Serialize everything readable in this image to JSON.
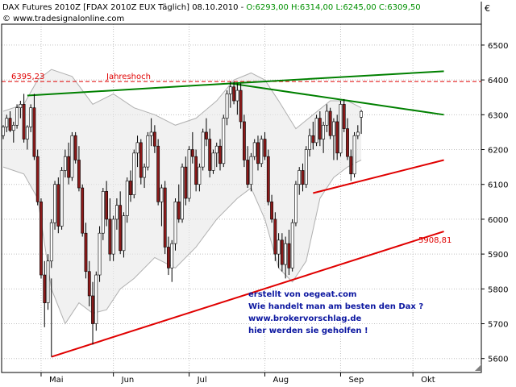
{
  "header": {
    "title": "DAX Futures 2010Z [FDAX 2010Z EUX  Täglich] 08.10.2010 -",
    "ohlc": "O:6293,00 H:6314,00 L:6245,00 C:6309,50",
    "copyright": "© www.tradesignalonline.com",
    "currency": "€"
  },
  "info_text": {
    "line1": "erstellt von oegeat.com",
    "line2": "Wie handelt man am besten den Dax ?",
    "line3": "www.brokervorschlag.de",
    "line4": "hier werden sie geholfen !"
  },
  "colors": {
    "up_candle": "#ffffff",
    "down_candle": "#8b1a1a",
    "trendline_green": "#008000",
    "trendline_red": "#e00000",
    "band": "#b0b0b0",
    "info_text": "#0c17a0",
    "grid": "#c0c0c0"
  },
  "chart_data": {
    "type": "candlestick",
    "timeframe": "daily",
    "y_axis": {
      "side": "right",
      "range": [
        5560,
        6560
      ],
      "ticks": [
        5600,
        5700,
        5800,
        5900,
        6000,
        6100,
        6200,
        6300,
        6400,
        6500
      ],
      "tick_labels": [
        "5600",
        "5700",
        "5800",
        "5900",
        "6000",
        "6100",
        "6200",
        "6300",
        "6400",
        "6500"
      ]
    },
    "x_axis": {
      "months": [
        "Mai",
        "Jun",
        "Jul",
        "Aug",
        "Sep",
        "Okt"
      ],
      "month_start_bar": [
        11,
        32,
        54,
        76,
        98,
        119
      ]
    },
    "grid": "dotted",
    "candles": [
      {
        "o": 6240,
        "h": 6270,
        "l": 6230,
        "c": 6265
      },
      {
        "o": 6265,
        "h": 6300,
        "l": 6250,
        "c": 6290
      },
      {
        "o": 6290,
        "h": 6310,
        "l": 6250,
        "c": 6255
      },
      {
        "o": 6255,
        "h": 6280,
        "l": 6220,
        "c": 6270
      },
      {
        "o": 6270,
        "h": 6330,
        "l": 6260,
        "c": 6320
      },
      {
        "o": 6320,
        "h": 6340,
        "l": 6290,
        "c": 6330
      },
      {
        "o": 6330,
        "h": 6360,
        "l": 6220,
        "c": 6230
      },
      {
        "o": 6230,
        "h": 6270,
        "l": 6200,
        "c": 6265
      },
      {
        "o": 6265,
        "h": 6330,
        "l": 6250,
        "c": 6320
      },
      {
        "o": 6320,
        "h": 6360,
        "l": 6170,
        "c": 6180
      },
      {
        "o": 6180,
        "h": 6200,
        "l": 6040,
        "c": 6050
      },
      {
        "o": 6050,
        "h": 6060,
        "l": 5830,
        "c": 5840
      },
      {
        "o": 5840,
        "h": 5880,
        "l": 5690,
        "c": 5760
      },
      {
        "o": 5760,
        "h": 5900,
        "l": 5740,
        "c": 5880
      },
      {
        "o": 5880,
        "h": 6000,
        "l": 5860,
        "c": 5990
      },
      {
        "o": 5990,
        "h": 6110,
        "l": 5970,
        "c": 6100
      },
      {
        "o": 6100,
        "h": 6120,
        "l": 5960,
        "c": 5980
      },
      {
        "o": 5980,
        "h": 6150,
        "l": 5970,
        "c": 6140
      },
      {
        "o": 6140,
        "h": 6200,
        "l": 6120,
        "c": 6180
      },
      {
        "o": 6180,
        "h": 6220,
        "l": 6100,
        "c": 6120
      },
      {
        "o": 6120,
        "h": 6250,
        "l": 6110,
        "c": 6240
      },
      {
        "o": 6240,
        "h": 6250,
        "l": 6160,
        "c": 6170
      },
      {
        "o": 6170,
        "h": 6210,
        "l": 6080,
        "c": 6090
      },
      {
        "o": 6090,
        "h": 6100,
        "l": 5950,
        "c": 5960
      },
      {
        "o": 5960,
        "h": 5990,
        "l": 5830,
        "c": 5850
      },
      {
        "o": 5850,
        "h": 5880,
        "l": 5750,
        "c": 5780
      },
      {
        "o": 5780,
        "h": 5820,
        "l": 5640,
        "c": 5700
      },
      {
        "o": 5700,
        "h": 5850,
        "l": 5680,
        "c": 5840
      },
      {
        "o": 5840,
        "h": 5980,
        "l": 5820,
        "c": 5960
      },
      {
        "o": 5960,
        "h": 6090,
        "l": 5940,
        "c": 6080
      },
      {
        "o": 6080,
        "h": 6110,
        "l": 5980,
        "c": 6000
      },
      {
        "o": 6000,
        "h": 6060,
        "l": 5880,
        "c": 5900
      },
      {
        "o": 5900,
        "h": 6010,
        "l": 5880,
        "c": 6000
      },
      {
        "o": 6000,
        "h": 6060,
        "l": 5970,
        "c": 6040
      },
      {
        "o": 6040,
        "h": 6080,
        "l": 5900,
        "c": 5910
      },
      {
        "o": 5910,
        "h": 6020,
        "l": 5890,
        "c": 6010
      },
      {
        "o": 6010,
        "h": 6120,
        "l": 5990,
        "c": 6110
      },
      {
        "o": 6110,
        "h": 6140,
        "l": 6050,
        "c": 6070
      },
      {
        "o": 6070,
        "h": 6200,
        "l": 6060,
        "c": 6190
      },
      {
        "o": 6190,
        "h": 6240,
        "l": 6150,
        "c": 6220
      },
      {
        "o": 6220,
        "h": 6230,
        "l": 6100,
        "c": 6120
      },
      {
        "o": 6120,
        "h": 6160,
        "l": 6090,
        "c": 6150
      },
      {
        "o": 6150,
        "h": 6250,
        "l": 6140,
        "c": 6240
      },
      {
        "o": 6240,
        "h": 6290,
        "l": 6210,
        "c": 6250
      },
      {
        "o": 6250,
        "h": 6270,
        "l": 6190,
        "c": 6210
      },
      {
        "o": 6210,
        "h": 6230,
        "l": 6040,
        "c": 6050
      },
      {
        "o": 6050,
        "h": 6100,
        "l": 5980,
        "c": 6090
      },
      {
        "o": 6090,
        "h": 6110,
        "l": 5900,
        "c": 5920
      },
      {
        "o": 5920,
        "h": 5950,
        "l": 5840,
        "c": 5860
      },
      {
        "o": 5860,
        "h": 5940,
        "l": 5820,
        "c": 5930
      },
      {
        "o": 5930,
        "h": 6060,
        "l": 5910,
        "c": 6050
      },
      {
        "o": 6050,
        "h": 6100,
        "l": 5990,
        "c": 6000
      },
      {
        "o": 6000,
        "h": 6160,
        "l": 5990,
        "c": 6150
      },
      {
        "o": 6150,
        "h": 6180,
        "l": 6040,
        "c": 6060
      },
      {
        "o": 6060,
        "h": 6210,
        "l": 6050,
        "c": 6200
      },
      {
        "o": 6200,
        "h": 6250,
        "l": 6160,
        "c": 6180
      },
      {
        "o": 6180,
        "h": 6200,
        "l": 6080,
        "c": 6100
      },
      {
        "o": 6100,
        "h": 6160,
        "l": 6080,
        "c": 6150
      },
      {
        "o": 6150,
        "h": 6260,
        "l": 6140,
        "c": 6250
      },
      {
        "o": 6250,
        "h": 6290,
        "l": 6210,
        "c": 6230
      },
      {
        "o": 6230,
        "h": 6260,
        "l": 6120,
        "c": 6140
      },
      {
        "o": 6140,
        "h": 6200,
        "l": 6130,
        "c": 6190
      },
      {
        "o": 6190,
        "h": 6220,
        "l": 6150,
        "c": 6210
      },
      {
        "o": 6210,
        "h": 6230,
        "l": 6140,
        "c": 6160
      },
      {
        "o": 6160,
        "h": 6300,
        "l": 6150,
        "c": 6290
      },
      {
        "o": 6290,
        "h": 6370,
        "l": 6270,
        "c": 6360
      },
      {
        "o": 6360,
        "h": 6395,
        "l": 6320,
        "c": 6380
      },
      {
        "o": 6380,
        "h": 6395,
        "l": 6330,
        "c": 6340
      },
      {
        "o": 6340,
        "h": 6390,
        "l": 6300,
        "c": 6370
      },
      {
        "o": 6370,
        "h": 6390,
        "l": 6260,
        "c": 6280
      },
      {
        "o": 6280,
        "h": 6300,
        "l": 6150,
        "c": 6170
      },
      {
        "o": 6170,
        "h": 6210,
        "l": 6090,
        "c": 6100
      },
      {
        "o": 6100,
        "h": 6190,
        "l": 6080,
        "c": 6180
      },
      {
        "o": 6180,
        "h": 6230,
        "l": 6170,
        "c": 6220
      },
      {
        "o": 6220,
        "h": 6240,
        "l": 6140,
        "c": 6160
      },
      {
        "o": 6160,
        "h": 6240,
        "l": 6150,
        "c": 6230
      },
      {
        "o": 6230,
        "h": 6250,
        "l": 6170,
        "c": 6180
      },
      {
        "o": 6180,
        "h": 6200,
        "l": 6040,
        "c": 6050
      },
      {
        "o": 6050,
        "h": 6070,
        "l": 5990,
        "c": 6000
      },
      {
        "o": 6000,
        "h": 6020,
        "l": 5880,
        "c": 5900
      },
      {
        "o": 5900,
        "h": 5960,
        "l": 5860,
        "c": 5940
      },
      {
        "o": 5940,
        "h": 5960,
        "l": 5850,
        "c": 5870
      },
      {
        "o": 5870,
        "h": 5950,
        "l": 5830,
        "c": 5930
      },
      {
        "o": 5930,
        "h": 5970,
        "l": 5840,
        "c": 5860
      },
      {
        "o": 5860,
        "h": 6000,
        "l": 5850,
        "c": 5990
      },
      {
        "o": 5990,
        "h": 6110,
        "l": 5980,
        "c": 6100
      },
      {
        "o": 6100,
        "h": 6150,
        "l": 6070,
        "c": 6140
      },
      {
        "o": 6140,
        "h": 6160,
        "l": 6080,
        "c": 6100
      },
      {
        "o": 6100,
        "h": 6210,
        "l": 6090,
        "c": 6200
      },
      {
        "o": 6200,
        "h": 6260,
        "l": 6180,
        "c": 6240
      },
      {
        "o": 6240,
        "h": 6280,
        "l": 6200,
        "c": 6220
      },
      {
        "o": 6220,
        "h": 6300,
        "l": 6210,
        "c": 6290
      },
      {
        "o": 6290,
        "h": 6310,
        "l": 6210,
        "c": 6230
      },
      {
        "o": 6230,
        "h": 6280,
        "l": 6190,
        "c": 6270
      },
      {
        "o": 6270,
        "h": 6330,
        "l": 6250,
        "c": 6310
      },
      {
        "o": 6310,
        "h": 6320,
        "l": 6230,
        "c": 6240
      },
      {
        "o": 6240,
        "h": 6290,
        "l": 6170,
        "c": 6280
      },
      {
        "o": 6280,
        "h": 6300,
        "l": 6170,
        "c": 6190
      },
      {
        "o": 6190,
        "h": 6340,
        "l": 6180,
        "c": 6330
      },
      {
        "o": 6330,
        "h": 6345,
        "l": 6250,
        "c": 6260
      },
      {
        "o": 6260,
        "h": 6290,
        "l": 6170,
        "c": 6180
      },
      {
        "o": 6180,
        "h": 6200,
        "l": 6110,
        "c": 6130
      },
      {
        "o": 6130,
        "h": 6250,
        "l": 6120,
        "c": 6240
      },
      {
        "o": 6240,
        "h": 6270,
        "l": 6230,
        "c": 6250
      },
      {
        "o": 6293,
        "h": 6314,
        "l": 6245,
        "c": 6309.5
      }
    ],
    "band": {
      "name": "",
      "upper": [
        {
          "i": 0,
          "v": 6310
        },
        {
          "i": 6,
          "v": 6330
        },
        {
          "i": 10,
          "v": 6400
        },
        {
          "i": 14,
          "v": 6430
        },
        {
          "i": 20,
          "v": 6410
        },
        {
          "i": 26,
          "v": 6330
        },
        {
          "i": 32,
          "v": 6360
        },
        {
          "i": 38,
          "v": 6320
        },
        {
          "i": 44,
          "v": 6300
        },
        {
          "i": 50,
          "v": 6270
        },
        {
          "i": 56,
          "v": 6290
        },
        {
          "i": 62,
          "v": 6340
        },
        {
          "i": 67,
          "v": 6400
        },
        {
          "i": 72,
          "v": 6420
        },
        {
          "i": 76,
          "v": 6400
        },
        {
          "i": 80,
          "v": 6340
        },
        {
          "i": 85,
          "v": 6260
        },
        {
          "i": 90,
          "v": 6300
        },
        {
          "i": 95,
          "v": 6340
        },
        {
          "i": 100,
          "v": 6340
        },
        {
          "i": 104,
          "v": 6320
        }
      ],
      "lower": [
        {
          "i": 0,
          "v": 6150
        },
        {
          "i": 6,
          "v": 6130
        },
        {
          "i": 10,
          "v": 6060
        },
        {
          "i": 14,
          "v": 5800
        },
        {
          "i": 18,
          "v": 5700
        },
        {
          "i": 22,
          "v": 5760
        },
        {
          "i": 26,
          "v": 5730
        },
        {
          "i": 30,
          "v": 5740
        },
        {
          "i": 34,
          "v": 5800
        },
        {
          "i": 38,
          "v": 5830
        },
        {
          "i": 44,
          "v": 5890
        },
        {
          "i": 50,
          "v": 5860
        },
        {
          "i": 56,
          "v": 5920
        },
        {
          "i": 62,
          "v": 6000
        },
        {
          "i": 68,
          "v": 6060
        },
        {
          "i": 72,
          "v": 6090
        },
        {
          "i": 76,
          "v": 6000
        },
        {
          "i": 80,
          "v": 5860
        },
        {
          "i": 84,
          "v": 5820
        },
        {
          "i": 88,
          "v": 5880
        },
        {
          "i": 92,
          "v": 6060
        },
        {
          "i": 96,
          "v": 6120
        },
        {
          "i": 100,
          "v": 6150
        },
        {
          "i": 104,
          "v": 6170
        }
      ]
    },
    "annotations": [
      {
        "kind": "hline",
        "value": 6395.23,
        "label": "6395,23",
        "text": "Jahreshoch",
        "color": "#e00000",
        "style": "dashed"
      },
      {
        "kind": "trendline",
        "color": "#008000",
        "points": [
          {
            "i": 7,
            "v": 6355
          },
          {
            "i": 66,
            "v": 6390
          },
          {
            "i": 128,
            "v": 6425
          }
        ]
      },
      {
        "kind": "trendline",
        "color": "#008000",
        "points": [
          {
            "i": 66,
            "v": 6390
          },
          {
            "i": 128,
            "v": 6300
          }
        ]
      },
      {
        "kind": "trendline",
        "color": "#e00000",
        "points": [
          {
            "i": 14,
            "v": 5605
          },
          {
            "i": 128,
            "v": 5965
          }
        ],
        "label": "5908,81"
      },
      {
        "kind": "trendline",
        "color": "#e00000",
        "points": [
          {
            "i": 90,
            "v": 6075
          },
          {
            "i": 128,
            "v": 6170
          }
        ]
      },
      {
        "kind": "trendline",
        "color": "#000000",
        "points": [
          {
            "i": 14,
            "v": 5605
          },
          {
            "i": 14,
            "v": 5830
          }
        ]
      }
    ]
  }
}
